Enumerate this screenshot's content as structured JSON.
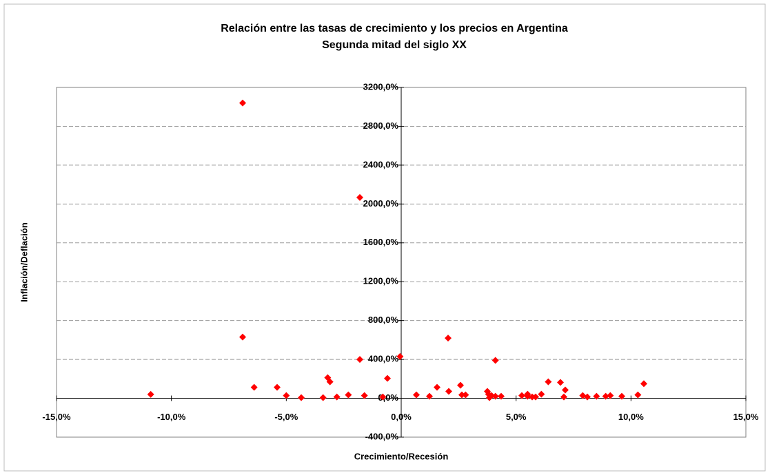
{
  "chart_data": {
    "type": "scatter",
    "title": "Relación entre las tasas de crecimiento y los precios en Argentina",
    "subtitle": "Segunda mitad del siglo XX",
    "x_label": "Crecimiento/Recesión",
    "y_label": "Inflación/Deflación",
    "color": "#ff0000",
    "grid": true,
    "xlim": [
      -15,
      15
    ],
    "ylim": [
      -400,
      3200
    ],
    "xticks": [
      {
        "value": -15,
        "label": "-15,0%"
      },
      {
        "value": -10,
        "label": "-10,0%"
      },
      {
        "value": -5,
        "label": "-5,0%"
      },
      {
        "value": 0,
        "label": "0,0%"
      },
      {
        "value": 5,
        "label": "5,0%"
      },
      {
        "value": 10,
        "label": "10,0%"
      },
      {
        "value": 15,
        "label": "15,0%"
      }
    ],
    "yticks": [
      {
        "value": -400,
        "label": "-400,0%"
      },
      {
        "value": 0,
        "label": "0,0%"
      },
      {
        "value": 400,
        "label": "400,0%"
      },
      {
        "value": 800,
        "label": "800,0%"
      },
      {
        "value": 1200,
        "label": "1200,0%"
      },
      {
        "value": 1600,
        "label": "1600,0%"
      },
      {
        "value": 2000,
        "label": "2000,0%"
      },
      {
        "value": 2400,
        "label": "2400,0%"
      },
      {
        "value": 2800,
        "label": "2800,0%"
      },
      {
        "value": 3200,
        "label": "3200,0%"
      }
    ],
    "x": [
      -10.9,
      -6.9,
      -6.9,
      -6.4,
      -5.4,
      -5.0,
      -4.35,
      -3.4,
      -3.1,
      -3.2,
      -2.8,
      -2.3,
      -1.8,
      -1.8,
      -1.6,
      -0.8,
      -0.6,
      -0.05,
      0.66,
      1.23,
      1.56,
      2.04,
      2.07,
      2.58,
      2.64,
      2.8,
      3.75,
      3.8,
      3.84,
      3.93,
      4.1,
      4.1,
      4.35,
      5.25,
      5.5,
      5.5,
      5.7,
      5.85,
      6.1,
      6.4,
      6.93,
      7.08,
      7.14,
      7.9,
      8.1,
      8.5,
      8.9,
      9.1,
      9.6,
      10.3,
      10.56
    ],
    "values": [
      40,
      3040,
      630,
      113,
      113,
      28,
      7,
      7,
      170,
      212,
      14,
      35,
      400,
      2067,
      28,
      14,
      205,
      430,
      35,
      21,
      113,
      620,
      71,
      134,
      35,
      35,
      71,
      42,
      7,
      28,
      21,
      390,
      21,
      28,
      21,
      42,
      14,
      14,
      42,
      170,
      163,
      14,
      85,
      28,
      14,
      21,
      21,
      28,
      21,
      35,
      150
    ]
  }
}
